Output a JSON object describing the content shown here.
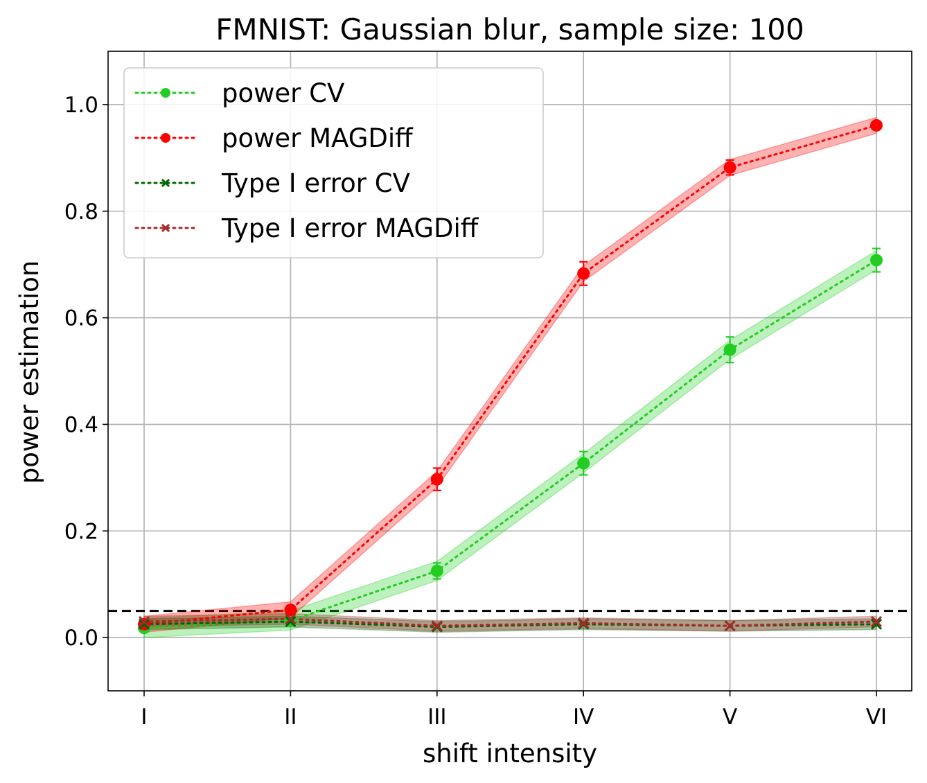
{
  "chart_data": {
    "type": "line",
    "title": "FMNIST: Gaussian blur, sample size: 100",
    "xlabel": "shift intensity",
    "ylabel": "power estimation",
    "categories": [
      "I",
      "II",
      "III",
      "IV",
      "V",
      "VI"
    ],
    "ylim": [
      -0.1,
      1.1
    ],
    "yticks": [
      0.0,
      0.2,
      0.4,
      0.6,
      0.8,
      1.0
    ],
    "ytick_labels": [
      "0.0",
      "0.2",
      "0.4",
      "0.6",
      "0.8",
      "1.0"
    ],
    "grid": true,
    "legend_position": "upper-left",
    "reference_line": {
      "y": 0.05,
      "color": "#000000",
      "style": "dashed"
    },
    "series": [
      {
        "name": "power CV",
        "color": "#22cc22",
        "marker": "circle",
        "values": [
          0.018,
          0.032,
          0.125,
          0.327,
          0.54,
          0.708
        ],
        "errors": [
          0.004,
          0.005,
          0.015,
          0.022,
          0.024,
          0.022
        ],
        "band": 0.018
      },
      {
        "name": "power MAGDiff",
        "color": "#ff0000",
        "marker": "circle",
        "values": [
          0.025,
          0.052,
          0.297,
          0.683,
          0.882,
          0.961
        ],
        "errors": [
          0.005,
          0.006,
          0.021,
          0.022,
          0.014,
          0.007
        ],
        "band": 0.015
      },
      {
        "name": "Type I error CV",
        "color": "#006400",
        "marker": "x",
        "values": [
          0.025,
          0.03,
          0.02,
          0.025,
          0.022,
          0.025
        ],
        "errors": [
          0,
          0,
          0,
          0,
          0,
          0
        ],
        "band": 0.01
      },
      {
        "name": "Type I error MAGDiff",
        "color": "#a52a2a",
        "marker": "x",
        "values": [
          0.03,
          0.035,
          0.022,
          0.027,
          0.022,
          0.03
        ],
        "errors": [
          0,
          0,
          0,
          0,
          0,
          0
        ],
        "band": 0.01
      }
    ]
  }
}
